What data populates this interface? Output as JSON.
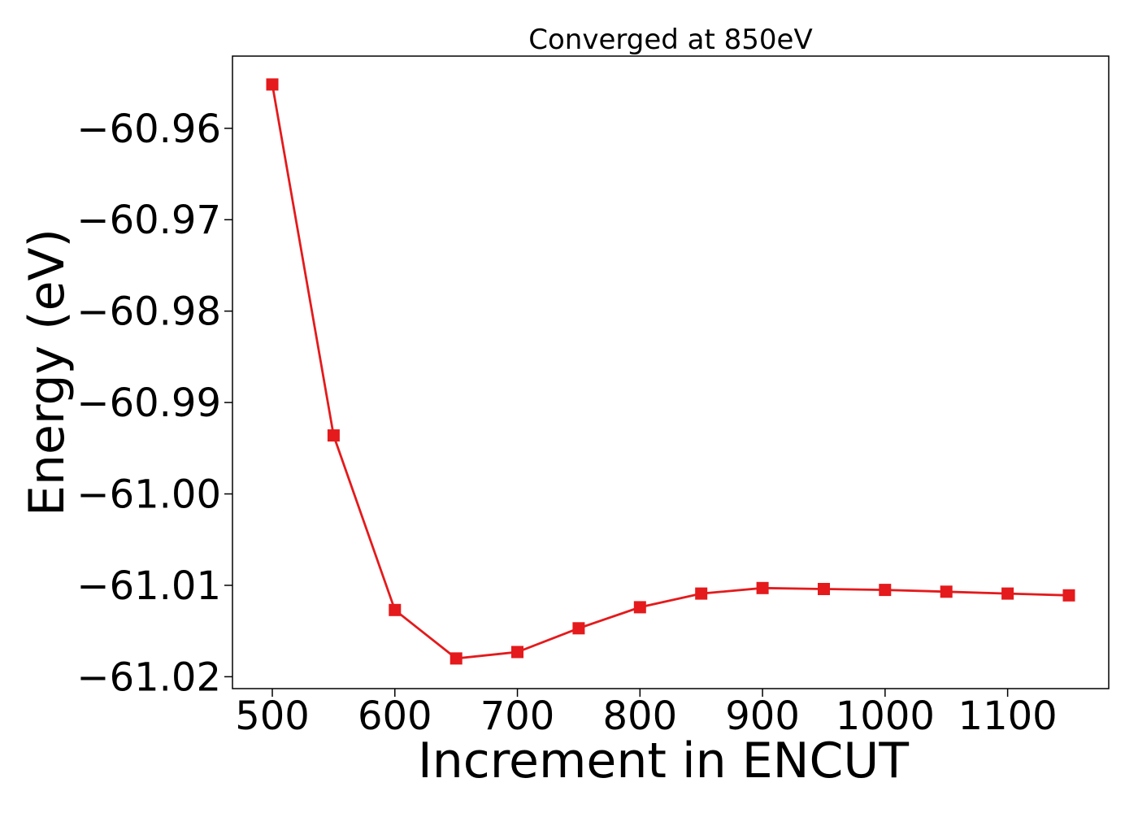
{
  "chart_data": {
    "type": "line",
    "title": "Converged at 850eV",
    "xlabel": "Increment in ENCUT",
    "ylabel": "Energy (eV)",
    "x": [
      500,
      550,
      600,
      650,
      700,
      750,
      800,
      850,
      900,
      950,
      1000,
      1050,
      1100,
      1150
    ],
    "series": [
      {
        "values": [
          -60.9552,
          -60.9936,
          -61.0127,
          -61.018,
          -61.0173,
          -61.0147,
          -61.0124,
          -61.0109,
          -61.0103,
          -61.0104,
          -61.0105,
          -61.0107,
          -61.0109,
          -61.0111
        ],
        "color": "#e41a1c",
        "marker": "square"
      }
    ],
    "xticks": [
      500,
      600,
      700,
      800,
      900,
      1000,
      1100
    ],
    "yticks": [
      -60.96,
      -60.97,
      -60.98,
      -60.99,
      -61.0,
      -61.01,
      -61.02
    ],
    "xlim": [
      467.5,
      1182.5
    ],
    "ylim": [
      -61.0213,
      -60.9521
    ],
    "grid": false,
    "legend": "none"
  }
}
